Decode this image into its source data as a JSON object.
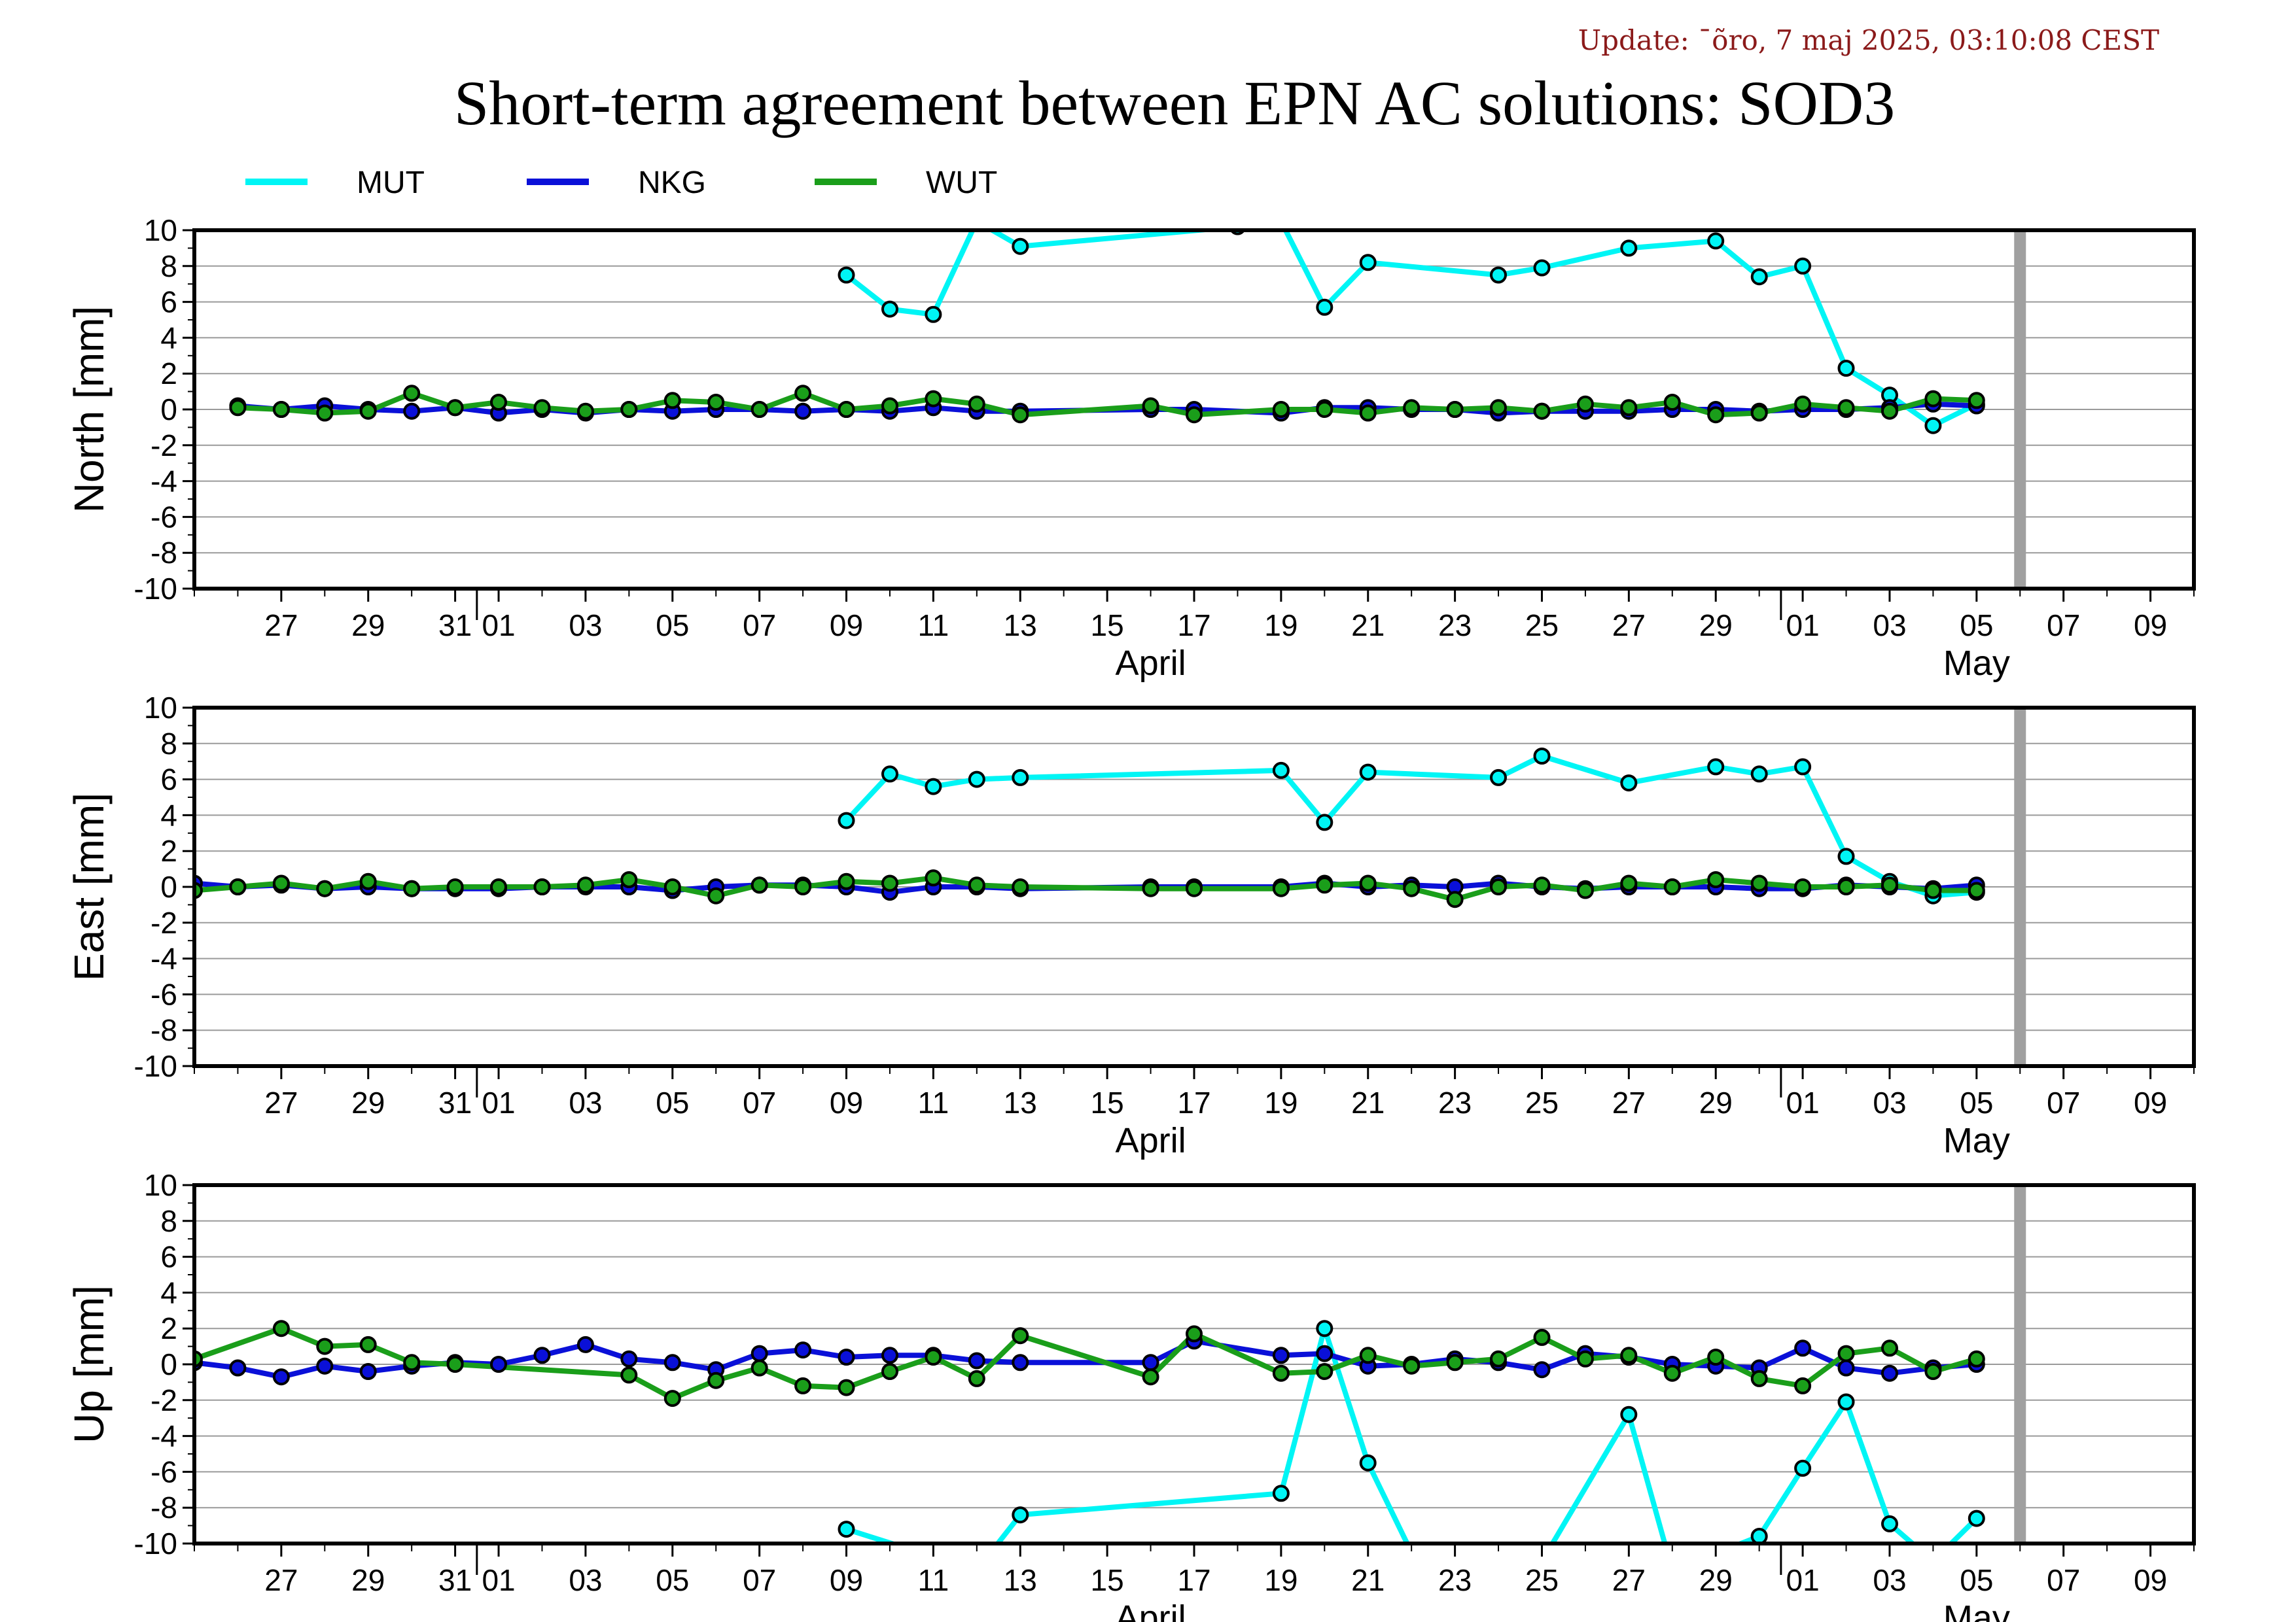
{
  "update_text": "Update: ¯õro, 7 maj 2025, 03:10:08 CEST",
  "title": "Short-term agreement between EPN AC solutions: SOD3",
  "colors": {
    "MUT": "#00f5f5",
    "NKG": "#0a10d8",
    "WUT": "#1a9e1a",
    "grid": "#9a9a9a",
    "marker_bar": "#a0a0a0"
  },
  "legend": [
    {
      "name": "MUT",
      "color": "#00f5f5"
    },
    {
      "name": "NKG",
      "color": "#0a10d8"
    },
    {
      "name": "WUT",
      "color": "#1a9e1a"
    }
  ],
  "chart_data": [
    {
      "type": "line",
      "ylabel": "North [mm]",
      "ylim": [
        -10,
        10
      ],
      "yticks": [
        10,
        8,
        6,
        4,
        2,
        0,
        -2,
        -4,
        -6,
        -8,
        -10
      ],
      "xlim": [
        "2025-03-25",
        "2025-05-10"
      ],
      "month_labels": [
        {
          "label": "April",
          "date": "2025-04-16"
        },
        {
          "label": "May",
          "date": "2025-05-05"
        }
      ],
      "current_marker": "2025-05-06",
      "grid": true,
      "series": [
        {
          "name": "MUT",
          "dates": [
            "2025-04-09",
            "2025-04-10",
            "2025-04-11",
            "2025-04-12",
            "2025-04-13",
            "2025-04-18",
            "2025-04-19",
            "2025-04-20",
            "2025-04-21",
            "2025-04-24",
            "2025-04-25",
            "2025-04-27",
            "2025-04-29",
            "2025-04-30",
            "2025-05-01",
            "2025-05-02",
            "2025-05-03",
            "2025-05-04",
            "2025-05-05"
          ],
          "values": [
            7.5,
            5.6,
            5.3,
            10.5,
            9.1,
            10.2,
            10.5,
            5.7,
            8.2,
            7.5,
            7.9,
            9.0,
            9.4,
            7.4,
            8.0,
            2.3,
            0.8,
            -0.9,
            0.3
          ]
        },
        {
          "name": "NKG",
          "dates": [
            "2025-03-26",
            "2025-03-27",
            "2025-03-28",
            "2025-03-29",
            "2025-03-30",
            "2025-03-31",
            "2025-04-01",
            "2025-04-02",
            "2025-04-03",
            "2025-04-04",
            "2025-04-05",
            "2025-04-06",
            "2025-04-07",
            "2025-04-08",
            "2025-04-09",
            "2025-04-10",
            "2025-04-11",
            "2025-04-12",
            "2025-04-13",
            "2025-04-16",
            "2025-04-17",
            "2025-04-19",
            "2025-04-20",
            "2025-04-21",
            "2025-04-22",
            "2025-04-23",
            "2025-04-24",
            "2025-04-25",
            "2025-04-26",
            "2025-04-27",
            "2025-04-28",
            "2025-04-29",
            "2025-04-30",
            "2025-05-01",
            "2025-05-02",
            "2025-05-03",
            "2025-05-04",
            "2025-05-05"
          ],
          "values": [
            0.2,
            0.0,
            0.2,
            0.0,
            -0.1,
            0.1,
            -0.2,
            0.0,
            -0.2,
            0.0,
            -0.1,
            0.0,
            0.0,
            -0.1,
            0.0,
            -0.1,
            0.1,
            -0.1,
            -0.1,
            0.0,
            0.0,
            -0.2,
            0.1,
            0.1,
            0.0,
            0.0,
            -0.2,
            -0.1,
            -0.1,
            -0.1,
            0.0,
            0.0,
            -0.1,
            0.0,
            0.0,
            0.1,
            0.3,
            0.2
          ]
        },
        {
          "name": "WUT",
          "dates": [
            "2025-03-26",
            "2025-03-27",
            "2025-03-28",
            "2025-03-29",
            "2025-03-30",
            "2025-03-31",
            "2025-04-01",
            "2025-04-02",
            "2025-04-03",
            "2025-04-04",
            "2025-04-05",
            "2025-04-06",
            "2025-04-07",
            "2025-04-08",
            "2025-04-09",
            "2025-04-10",
            "2025-04-11",
            "2025-04-12",
            "2025-04-13",
            "2025-04-16",
            "2025-04-17",
            "2025-04-19",
            "2025-04-20",
            "2025-04-21",
            "2025-04-22",
            "2025-04-23",
            "2025-04-24",
            "2025-04-25",
            "2025-04-26",
            "2025-04-27",
            "2025-04-28",
            "2025-04-29",
            "2025-04-30",
            "2025-05-01",
            "2025-05-02",
            "2025-05-03",
            "2025-05-04",
            "2025-05-05"
          ],
          "values": [
            0.1,
            0.0,
            -0.2,
            -0.1,
            0.9,
            0.1,
            0.4,
            0.1,
            -0.1,
            0.0,
            0.5,
            0.4,
            0.0,
            0.9,
            0.0,
            0.2,
            0.6,
            0.3,
            -0.3,
            0.2,
            -0.3,
            0.0,
            0.0,
            -0.2,
            0.1,
            0.0,
            0.1,
            -0.1,
            0.3,
            0.1,
            0.4,
            -0.3,
            -0.2,
            0.3,
            0.1,
            -0.1,
            0.6,
            0.5
          ]
        }
      ]
    },
    {
      "type": "line",
      "ylabel": "East [mm]",
      "ylim": [
        -10,
        10
      ],
      "yticks": [
        10,
        8,
        6,
        4,
        2,
        0,
        -2,
        -4,
        -6,
        -8,
        -10
      ],
      "xlim": [
        "2025-03-25",
        "2025-05-10"
      ],
      "month_labels": [
        {
          "label": "April",
          "date": "2025-04-16"
        },
        {
          "label": "May",
          "date": "2025-05-05"
        }
      ],
      "current_marker": "2025-05-06",
      "grid": true,
      "series": [
        {
          "name": "MUT",
          "dates": [
            "2025-04-09",
            "2025-04-10",
            "2025-04-11",
            "2025-04-12",
            "2025-04-13",
            "2025-04-19",
            "2025-04-20",
            "2025-04-21",
            "2025-04-24",
            "2025-04-25",
            "2025-04-27",
            "2025-04-29",
            "2025-04-30",
            "2025-05-01",
            "2025-05-02",
            "2025-05-03",
            "2025-05-04",
            "2025-05-05"
          ],
          "values": [
            3.7,
            6.3,
            5.6,
            6.0,
            6.1,
            6.5,
            3.6,
            6.4,
            6.1,
            7.3,
            5.8,
            6.7,
            6.3,
            6.7,
            1.7,
            0.3,
            -0.5,
            -0.3
          ]
        },
        {
          "name": "NKG",
          "dates": [
            "2025-03-25",
            "2025-03-26",
            "2025-03-27",
            "2025-03-28",
            "2025-03-29",
            "2025-03-30",
            "2025-03-31",
            "2025-04-01",
            "2025-04-02",
            "2025-04-03",
            "2025-04-04",
            "2025-04-05",
            "2025-04-06",
            "2025-04-07",
            "2025-04-08",
            "2025-04-09",
            "2025-04-10",
            "2025-04-11",
            "2025-04-12",
            "2025-04-13",
            "2025-04-16",
            "2025-04-17",
            "2025-04-19",
            "2025-04-20",
            "2025-04-21",
            "2025-04-22",
            "2025-04-23",
            "2025-04-24",
            "2025-04-25",
            "2025-04-26",
            "2025-04-27",
            "2025-04-28",
            "2025-04-29",
            "2025-04-30",
            "2025-05-01",
            "2025-05-02",
            "2025-05-03",
            "2025-05-04",
            "2025-05-05"
          ],
          "values": [
            0.2,
            0.0,
            0.1,
            -0.1,
            0.0,
            -0.1,
            -0.1,
            -0.1,
            0.0,
            0.0,
            0.0,
            -0.2,
            0.0,
            0.1,
            0.1,
            0.0,
            -0.3,
            0.0,
            0.0,
            -0.1,
            0.0,
            0.0,
            0.0,
            0.2,
            0.0,
            0.1,
            0.0,
            0.2,
            0.0,
            -0.1,
            0.0,
            0.0,
            0.0,
            -0.1,
            -0.1,
            0.1,
            0.0,
            -0.1,
            0.1
          ]
        },
        {
          "name": "WUT",
          "dates": [
            "2025-03-25",
            "2025-03-26",
            "2025-03-27",
            "2025-03-28",
            "2025-03-29",
            "2025-03-30",
            "2025-03-31",
            "2025-04-01",
            "2025-04-02",
            "2025-04-03",
            "2025-04-04",
            "2025-04-05",
            "2025-04-06",
            "2025-04-07",
            "2025-04-08",
            "2025-04-09",
            "2025-04-10",
            "2025-04-11",
            "2025-04-12",
            "2025-04-13",
            "2025-04-16",
            "2025-04-17",
            "2025-04-19",
            "2025-04-20",
            "2025-04-21",
            "2025-04-22",
            "2025-04-23",
            "2025-04-24",
            "2025-04-25",
            "2025-04-26",
            "2025-04-27",
            "2025-04-28",
            "2025-04-29",
            "2025-04-30",
            "2025-05-01",
            "2025-05-02",
            "2025-05-03",
            "2025-05-04",
            "2025-05-05"
          ],
          "values": [
            -0.2,
            0.0,
            0.2,
            -0.1,
            0.3,
            -0.1,
            0.0,
            0.0,
            0.0,
            0.1,
            0.4,
            0.0,
            -0.5,
            0.1,
            0.0,
            0.3,
            0.2,
            0.5,
            0.1,
            0.0,
            -0.1,
            -0.1,
            -0.1,
            0.1,
            0.2,
            -0.1,
            -0.7,
            0.0,
            0.1,
            -0.2,
            0.2,
            0.0,
            0.4,
            0.2,
            0.0,
            0.0,
            0.1,
            -0.2,
            -0.2
          ]
        }
      ]
    },
    {
      "type": "line",
      "ylabel": "Up [mm]",
      "ylim": [
        -10,
        10
      ],
      "yticks": [
        10,
        8,
        6,
        4,
        2,
        0,
        -2,
        -4,
        -6,
        -8,
        -10
      ],
      "xlim": [
        "2025-03-25",
        "2025-05-10"
      ],
      "month_labels": [
        {
          "label": "April",
          "date": "2025-04-16"
        },
        {
          "label": "May",
          "date": "2025-05-05"
        }
      ],
      "current_marker": "2025-05-06",
      "grid": true,
      "series": [
        {
          "name": "MUT",
          "dates": [
            "2025-04-09",
            "2025-04-12",
            "2025-04-13",
            "2025-04-19",
            "2025-04-20",
            "2025-04-21",
            "2025-04-22",
            "2025-04-25",
            "2025-04-27",
            "2025-04-28",
            "2025-04-30",
            "2025-05-01",
            "2025-05-02",
            "2025-05-03",
            "2025-05-04",
            "2025-05-05"
          ],
          "values": [
            -9.2,
            -11.5,
            -8.4,
            -7.2,
            2.0,
            -5.5,
            -10.5,
            -11.0,
            -2.8,
            -11.5,
            -9.6,
            -5.8,
            -2.1,
            -8.9,
            -11.0,
            -8.6
          ]
        },
        {
          "name": "NKG",
          "dates": [
            "2025-03-25",
            "2025-03-26",
            "2025-03-27",
            "2025-03-28",
            "2025-03-29",
            "2025-03-30",
            "2025-03-31",
            "2025-04-01",
            "2025-04-02",
            "2025-04-03",
            "2025-04-04",
            "2025-04-05",
            "2025-04-06",
            "2025-04-07",
            "2025-04-08",
            "2025-04-09",
            "2025-04-10",
            "2025-04-11",
            "2025-04-12",
            "2025-04-13",
            "2025-04-16",
            "2025-04-17",
            "2025-04-19",
            "2025-04-20",
            "2025-04-21",
            "2025-04-22",
            "2025-04-23",
            "2025-04-24",
            "2025-04-25",
            "2025-04-26",
            "2025-04-27",
            "2025-04-28",
            "2025-04-29",
            "2025-04-30",
            "2025-05-01",
            "2025-05-02",
            "2025-05-03",
            "2025-05-04",
            "2025-05-05"
          ],
          "values": [
            0.1,
            -0.2,
            -0.7,
            -0.1,
            -0.4,
            -0.1,
            0.1,
            0.0,
            0.5,
            1.1,
            0.3,
            0.1,
            -0.3,
            0.6,
            0.8,
            0.4,
            0.5,
            0.5,
            0.2,
            0.1,
            0.1,
            1.3,
            0.5,
            0.6,
            -0.1,
            0.0,
            0.3,
            0.1,
            -0.3,
            0.6,
            0.4,
            0.0,
            -0.1,
            -0.2,
            0.9,
            -0.2,
            -0.5,
            -0.2,
            0.0
          ]
        },
        {
          "name": "WUT",
          "dates": [
            "2025-03-25",
            "2025-03-27",
            "2025-03-28",
            "2025-03-29",
            "2025-03-30",
            "2025-03-31",
            "2025-04-04",
            "2025-04-05",
            "2025-04-06",
            "2025-04-07",
            "2025-04-08",
            "2025-04-09",
            "2025-04-10",
            "2025-04-11",
            "2025-04-12",
            "2025-04-13",
            "2025-04-16",
            "2025-04-17",
            "2025-04-19",
            "2025-04-20",
            "2025-04-21",
            "2025-04-22",
            "2025-04-23",
            "2025-04-24",
            "2025-04-25",
            "2025-04-26",
            "2025-04-27",
            "2025-04-28",
            "2025-04-29",
            "2025-04-30",
            "2025-05-01",
            "2025-05-02",
            "2025-05-03",
            "2025-05-04",
            "2025-05-05"
          ],
          "values": [
            0.3,
            2.0,
            1.0,
            1.1,
            0.1,
            0.0,
            -0.6,
            -1.9,
            -0.9,
            -0.2,
            -1.2,
            -1.3,
            -0.4,
            0.4,
            -0.8,
            1.6,
            -0.7,
            1.7,
            -0.5,
            -0.4,
            0.5,
            -0.1,
            0.1,
            0.3,
            1.5,
            0.3,
            0.5,
            -0.5,
            0.4,
            -0.8,
            -1.2,
            0.6,
            0.9,
            -0.4,
            0.3
          ]
        }
      ]
    }
  ],
  "x_tick_labels": [
    {
      "label": "27",
      "date": "2025-03-27"
    },
    {
      "label": "29",
      "date": "2025-03-29"
    },
    {
      "label": "31",
      "date": "2025-03-31"
    },
    {
      "label": "01",
      "date": "2025-04-01"
    },
    {
      "label": "03",
      "date": "2025-04-03"
    },
    {
      "label": "05",
      "date": "2025-04-05"
    },
    {
      "label": "07",
      "date": "2025-04-07"
    },
    {
      "label": "09",
      "date": "2025-04-09"
    },
    {
      "label": "11",
      "date": "2025-04-11"
    },
    {
      "label": "13",
      "date": "2025-04-13"
    },
    {
      "label": "15",
      "date": "2025-04-15"
    },
    {
      "label": "17",
      "date": "2025-04-17"
    },
    {
      "label": "19",
      "date": "2025-04-19"
    },
    {
      "label": "21",
      "date": "2025-04-21"
    },
    {
      "label": "23",
      "date": "2025-04-23"
    },
    {
      "label": "25",
      "date": "2025-04-25"
    },
    {
      "label": "27",
      "date": "2025-04-27"
    },
    {
      "label": "29",
      "date": "2025-04-29"
    },
    {
      "label": "01",
      "date": "2025-05-01"
    },
    {
      "label": "03",
      "date": "2025-05-03"
    },
    {
      "label": "05",
      "date": "2025-05-05"
    },
    {
      "label": "07",
      "date": "2025-05-07"
    },
    {
      "label": "09",
      "date": "2025-05-09"
    }
  ]
}
